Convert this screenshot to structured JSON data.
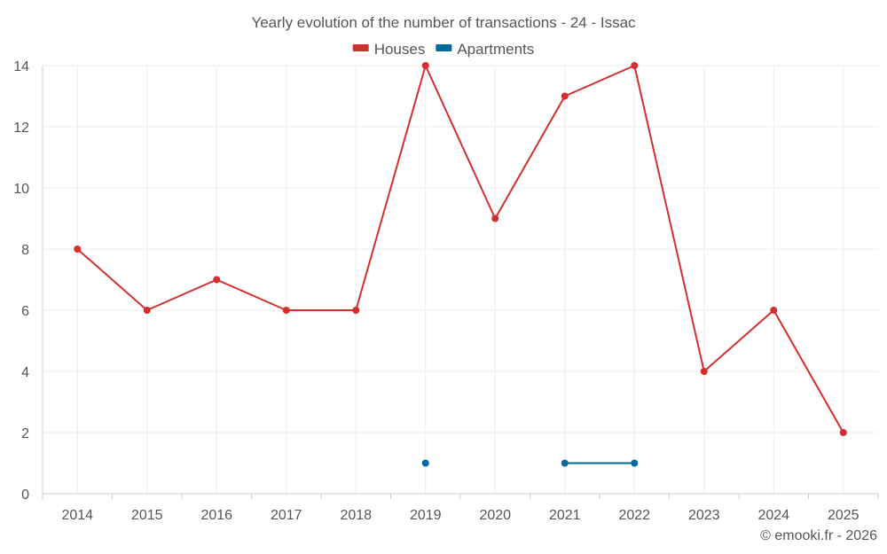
{
  "chart_data": {
    "type": "line",
    "title": "Yearly evolution of the number of transactions - 24 - Issac",
    "categories": [
      "2014",
      "2015",
      "2016",
      "2017",
      "2018",
      "2019",
      "2020",
      "2021",
      "2022",
      "2023",
      "2024",
      "2025"
    ],
    "ylim": [
      0,
      14
    ],
    "yticks": [
      0,
      2,
      4,
      6,
      8,
      10,
      12,
      14
    ],
    "grid": true,
    "legend_position": "top-center",
    "series": [
      {
        "name": "Houses",
        "color": "#d32f2f",
        "values": [
          8,
          6,
          7,
          6,
          6,
          14,
          9,
          13,
          14,
          4,
          6,
          2
        ]
      },
      {
        "name": "Apartments",
        "color": "#01699b",
        "values": [
          null,
          null,
          null,
          null,
          null,
          1,
          null,
          1,
          1,
          null,
          null,
          null
        ]
      }
    ]
  },
  "credit": "© emooki.fr - 2026"
}
